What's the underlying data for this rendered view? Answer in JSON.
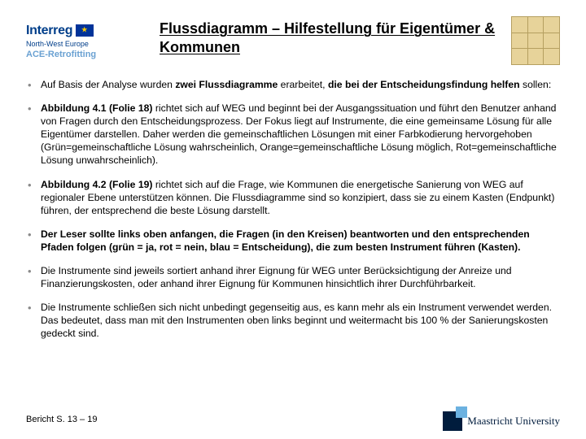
{
  "header": {
    "logo_left": {
      "line1": "Interreg",
      "line2": "North-West Europe",
      "line3": "ACE-Retrofitting"
    },
    "title": "Flussdiagramm – Hilfestellung für Eigentümer & Kommunen"
  },
  "bullets": [
    {
      "pre": "Auf Basis der Analyse wurden ",
      "bold1": "zwei Flussdiagramme",
      "mid": " erarbeitet, ",
      "bold2": "die bei der Entscheidungsfindung helfen",
      "post": " sollen:"
    },
    {
      "bold1": "Abbildung 4.1 (Folie 18)",
      "post": " richtet sich auf WEG und beginnt bei der Ausgangssituation und führt den Benutzer anhand von Fragen durch den Entscheidungsprozess. Der Fokus liegt auf Instrumente, die eine gemeinsame Lösung für alle Eigentümer darstellen. Daher werden die gemeinschaftlichen Lösungen mit einer Farbkodierung hervorgehoben (Grün=gemeinschaftliche Lösung wahrscheinlich, Orange=gemeinschaftliche Lösung möglich, Rot=gemeinschaftliche Lösung unwahrscheinlich)."
    },
    {
      "bold1": "Abbildung 4.2 (Folie 19)",
      "post": " richtet sich auf die Frage, wie Kommunen die energetische Sanierung von WEG auf regionaler Ebene unterstützen können. Die Flussdiagramme sind so konzipiert, dass sie zu einem Kasten (Endpunkt) führen, der entsprechend die beste Lösung darstellt."
    },
    {
      "bold1": "Der Leser sollte links oben anfangen, die Fragen (in den Kreisen) beantworten und den entsprechenden Pfaden folgen (grün = ja, rot = nein, blau = Entscheidung), die zum besten Instrument führen (Kasten)."
    },
    {
      "post": "Die Instrumente sind jeweils sortiert anhand ihrer Eignung für WEG unter Berücksichtigung der Anreize und Finanzierungskosten, oder anhand ihrer Eignung für Kommunen hinsichtlich ihrer Durchführbarkeit."
    },
    {
      "post": "Die Instrumente schließen sich nicht unbedingt gegenseitig aus, es kann mehr als ein Instrument verwendet werden. Das bedeutet, dass man mit den Instrumenten oben links beginnt und weitermacht bis 100 % der Sanierungskosten gedeckt sind."
    }
  ],
  "footer": {
    "reference": "Bericht S. 13 – 19",
    "uni_name": "Maastricht University"
  }
}
